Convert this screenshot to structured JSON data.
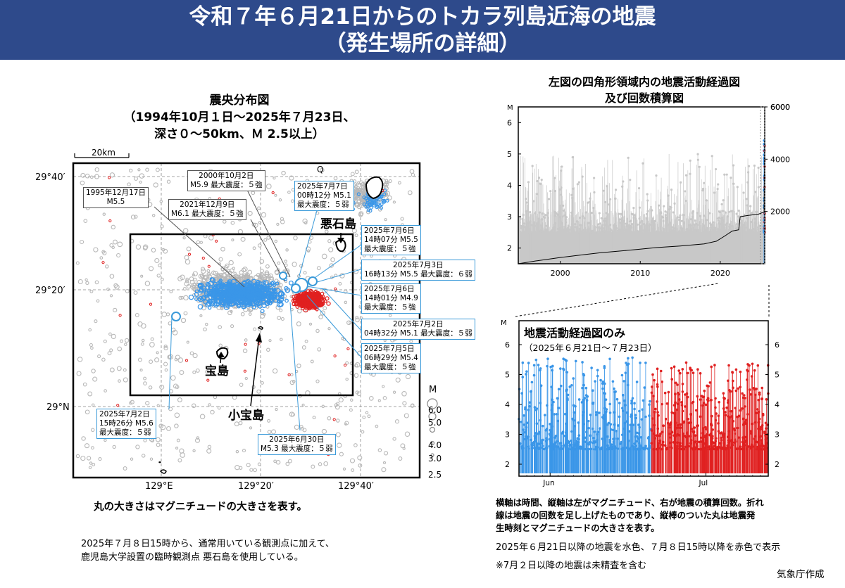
{
  "header": {
    "line1": "令和７年６月21日からのトカラ列島近海の地震",
    "line2": "（発生場所の詳細）"
  },
  "map": {
    "title1": "震央分布図",
    "title2": "（1994年10月１日～2025年７月23日、",
    "title3": "深さ０～50km、Ｍ 2.5以上）",
    "scale": "20km",
    "lat_labels": [
      "29°40′",
      "29°20′",
      "29°N"
    ],
    "lon_labels": [
      "129°E",
      "129°20′",
      "129°40′"
    ],
    "q_label": "Q",
    "islands": {
      "akuseki": "悪石島",
      "takara": "宝島",
      "kotakara": "小宝島"
    },
    "mag_legend": {
      "title": "M",
      "items": [
        "6.0",
        "5.0",
        "4.0",
        "3.0",
        "2.5"
      ]
    },
    "callouts": [
      {
        "lines": [
          "1995年12月17日",
          "M5.5"
        ]
      },
      {
        "lines": [
          "2000年10月2日",
          "M5.9  最大震度：５強"
        ]
      },
      {
        "lines": [
          "2021年12月9日",
          "M6.1  最大震度：５強"
        ]
      },
      {
        "lines": [
          "2025年7月7日",
          "00時12分 M5.1",
          "最大震度：５弱"
        ]
      },
      {
        "lines": [
          "2025年7月6日",
          "14時07分 M5.5",
          "最大震度：５強"
        ]
      },
      {
        "lines": [
          "2025年7月3日",
          "16時13分 M5.5 最大震度：６弱"
        ]
      },
      {
        "lines": [
          "2025年7月6日",
          "14時01分 M4.9",
          "最大震度：５強"
        ]
      },
      {
        "lines": [
          "2025年7月2日",
          "04時32分 M5.1 最大震度：５弱"
        ]
      },
      {
        "lines": [
          "2025年7月5日",
          "06時29分 M5.4",
          "最大震度：５強"
        ]
      },
      {
        "lines": [
          "2025年7月2日",
          "15時26分 M5.6",
          "最大震度：５弱"
        ]
      },
      {
        "lines": [
          "2025年6月30日",
          "M5.3  最大震度：５弱"
        ]
      }
    ],
    "caption": "丸の大きさはマグニチュードの大きさを表す。"
  },
  "note_left1": "2025年７月８日15時から、通常用いている観測点に加えて、",
  "note_left2": "鹿児島大学設置の臨時観測点 悪石島を使用している。",
  "chart_data": [
    {
      "type": "line",
      "title": "左図の四角形領域内の地震活動経過図",
      "subtitle": "及び回数積算図",
      "ylabel_left": "M",
      "left_axis": {
        "ticks": [
          2,
          3,
          4,
          5,
          6
        ],
        "ylim": [
          1.5,
          6.5
        ]
      },
      "right_axis": {
        "ticks": [
          2000,
          4000,
          6000
        ],
        "ylim": [
          0,
          6000
        ]
      },
      "x_ticks": [
        "2000",
        "2010",
        "2020"
      ],
      "xlim": [
        1994.75,
        2025.56
      ],
      "series": [
        {
          "values": [
            [
              1994.75,
              0
            ],
            [
              1997,
              110
            ],
            [
              2000,
              240
            ],
            [
              2003,
              350
            ],
            [
              2005,
              420
            ],
            [
              2008,
              500
            ],
            [
              2010,
              560
            ],
            [
              2012,
              620
            ],
            [
              2015,
              680
            ],
            [
              2018,
              760
            ],
            [
              2019.5,
              860
            ],
            [
              2020.5,
              1050
            ],
            [
              2021.5,
              1250
            ],
            [
              2022.3,
              1300
            ],
            [
              2022.5,
              1800
            ],
            [
              2023.5,
              1850
            ],
            [
              2024.8,
              1900
            ],
            [
              2025.47,
              1980
            ],
            [
              2025.52,
              3500
            ],
            [
              2025.56,
              4700
            ]
          ]
        }
      ],
      "colors": {
        "background": "#c8c8c8",
        "june": "#3a96e8",
        "july8": "#e02020",
        "cumulative": "#000000"
      }
    },
    {
      "type": "line",
      "title": "地震活動経過図のみ",
      "subtitle": "（2025年６月21日～７月23日）",
      "ylabel_left": "M",
      "left_axis": {
        "ticks": [
          2,
          3,
          4,
          5,
          6
        ],
        "ylim": [
          1.6,
          6.8
        ]
      },
      "x_ticks": [
        "Jun",
        "Jul"
      ],
      "xlim": [
        "2025-06-21",
        "2025-07-23"
      ],
      "series": [
        {
          "name": "",
          "color": "#3a96e8",
          "x_range": [
            "2025-06-21",
            "2025-07-08"
          ],
          "max_m": 5.6
        },
        {
          "name": "",
          "color": "#e02020",
          "x_range": [
            "2025-07-08",
            "2025-07-23"
          ],
          "max_m": 5.4
        }
      ]
    }
  ],
  "note_right1": "横軸は時間、縦軸は左がマグニチュード、右が地震の積算回数。折れ",
  "note_right2": "線は地震の回数を足し上げたものであり、縦棒のついた丸は地震発",
  "note_right3": "生時刻とマグニチュードの大きさを表す。",
  "note_right4": "2025年６月21日以降の地震を水色、７月８日15時以降を赤色で表示",
  "note_right5": "※7月２日以降の地震は未精査を含む",
  "credit": "気象庁作成"
}
